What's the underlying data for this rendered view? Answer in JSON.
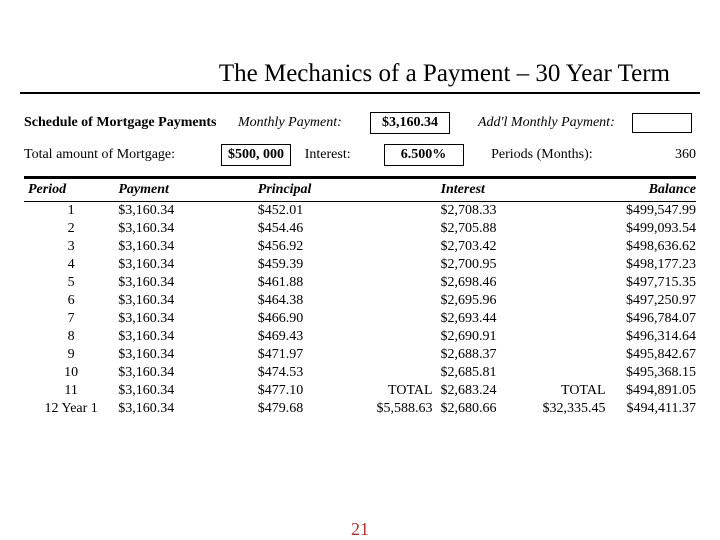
{
  "title": "The Mechanics of a Payment – 30 Year Term",
  "meta": {
    "schedule_label": "Schedule of Mortgage Payments",
    "monthly_payment_label": "Monthly Payment:",
    "monthly_payment_value": "$3,160.34",
    "addl_payment_label": "Add'l Monthly Payment:",
    "addl_payment_value": "",
    "total_mortgage_label": "Total amount of Mortgage:",
    "total_mortgage_value": "$500, 000",
    "interest_label": "Interest:",
    "interest_value": "6.500%",
    "periods_label": "Periods (Months):",
    "periods_value": "360"
  },
  "headers": {
    "period": "Period",
    "payment": "Payment",
    "principal": "Principal",
    "interest": "Interest",
    "balance": "Balance"
  },
  "rows": [
    {
      "period": "1",
      "payment": "$3,160.34",
      "principal": "$452.01",
      "t1": "",
      "interest": "$2,708.33",
      "t2": "",
      "balance": "$499,547.99"
    },
    {
      "period": "2",
      "payment": "$3,160.34",
      "principal": "$454.46",
      "t1": "",
      "interest": "$2,705.88",
      "t2": "",
      "balance": "$499,093.54"
    },
    {
      "period": "3",
      "payment": "$3,160.34",
      "principal": "$456.92",
      "t1": "",
      "interest": "$2,703.42",
      "t2": "",
      "balance": "$498,636.62"
    },
    {
      "period": "4",
      "payment": "$3,160.34",
      "principal": "$459.39",
      "t1": "",
      "interest": "$2,700.95",
      "t2": "",
      "balance": "$498,177.23"
    },
    {
      "period": "5",
      "payment": "$3,160.34",
      "principal": "$461.88",
      "t1": "",
      "interest": "$2,698.46",
      "t2": "",
      "balance": "$497,715.35"
    },
    {
      "period": "6",
      "payment": "$3,160.34",
      "principal": "$464.38",
      "t1": "",
      "interest": "$2,695.96",
      "t2": "",
      "balance": "$497,250.97"
    },
    {
      "period": "7",
      "payment": "$3,160.34",
      "principal": "$466.90",
      "t1": "",
      "interest": "$2,693.44",
      "t2": "",
      "balance": "$496,784.07"
    },
    {
      "period": "8",
      "payment": "$3,160.34",
      "principal": "$469.43",
      "t1": "",
      "interest": "$2,690.91",
      "t2": "",
      "balance": "$496,314.64"
    },
    {
      "period": "9",
      "payment": "$3,160.34",
      "principal": "$471.97",
      "t1": "",
      "interest": "$2,688.37",
      "t2": "",
      "balance": "$495,842.67"
    },
    {
      "period": "10",
      "payment": "$3,160.34",
      "principal": "$474.53",
      "t1": "",
      "interest": "$2,685.81",
      "t2": "",
      "balance": "$495,368.15"
    },
    {
      "period": "11",
      "payment": "$3,160.34",
      "principal": "$477.10",
      "t1": "TOTAL",
      "interest": "$2,683.24",
      "t2": "TOTAL",
      "balance": "$494,891.05"
    },
    {
      "period": "12 Year 1",
      "payment": "$3,160.34",
      "principal": "$479.68",
      "t1": "$5,588.63",
      "interest": "$2,680.66",
      "t2": "$32,335.45",
      "balance": "$494,411.37"
    }
  ],
  "page_number": "21",
  "style": {
    "background": "#ffffff",
    "text_color": "#000000",
    "border_color": "#000000",
    "page_num_color": "#b03030",
    "font_family": "Times New Roman",
    "title_fontsize": 25,
    "body_fontsize": 14
  }
}
